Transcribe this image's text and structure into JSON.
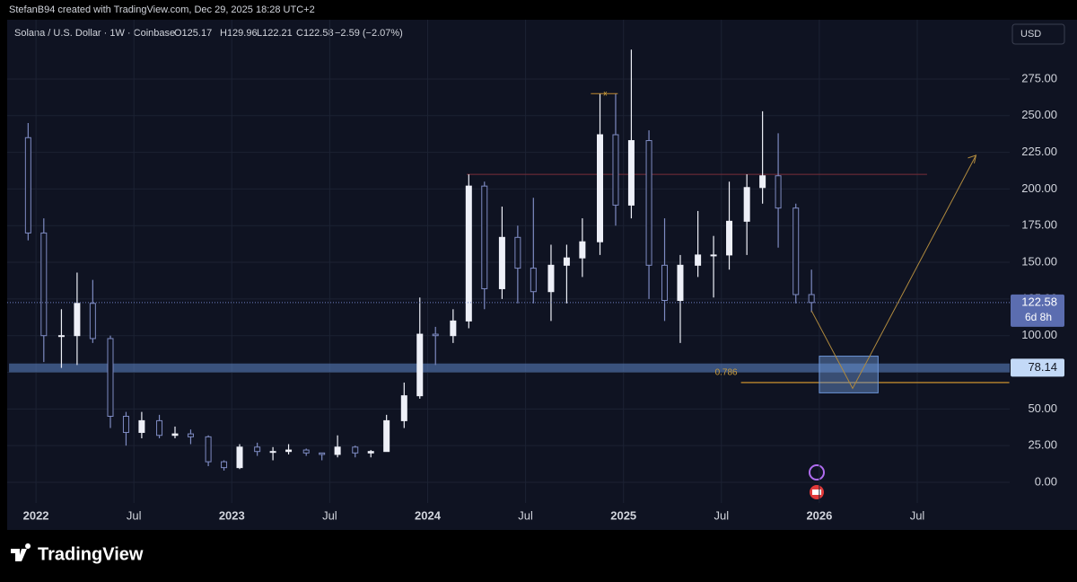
{
  "header": "StefanB94 created with TradingView.com, Dec 29, 2025 18:28 UTC+2",
  "chart_data": {
    "type": "candlestick",
    "legend": {
      "symbol": "Solana / U.S. Dollar · 1W · Coinbase",
      "open": "O125.17",
      "high": "H129.96",
      "low": "L122.21",
      "close": "C122.58",
      "change": "−2.59 (−2.07%)"
    },
    "currency": "USD",
    "up_color": "#eef0f8",
    "down_color": "#7e8bc2",
    "candles": {
      "x": [
        2021.96,
        2022.04,
        2022.13,
        2022.21,
        2022.29,
        2022.38,
        2022.46,
        2022.54,
        2022.63,
        2022.71,
        2022.79,
        2022.88,
        2022.96,
        2023.04,
        2023.13,
        2023.21,
        2023.29,
        2023.38,
        2023.46,
        2023.54,
        2023.63,
        2023.71,
        2023.79,
        2023.88,
        2023.96,
        2024.04,
        2024.13,
        2024.21,
        2024.29,
        2024.38,
        2024.46,
        2024.54,
        2024.63,
        2024.71,
        2024.79,
        2024.88,
        2024.96,
        2025.04,
        2025.13,
        2025.21,
        2025.29,
        2025.38,
        2025.46,
        2025.54,
        2025.63,
        2025.71,
        2025.79,
        2025.88,
        2025.96
      ],
      "open": [
        235,
        170,
        100,
        100,
        122,
        98,
        45,
        34,
        42,
        32,
        33,
        31,
        14,
        10,
        24,
        21,
        21,
        22,
        20,
        19,
        24,
        20,
        21,
        42,
        59,
        101,
        100,
        110,
        202,
        132,
        167,
        146,
        130,
        148,
        153,
        164,
        237,
        189,
        233,
        148,
        124,
        148,
        155,
        155,
        178,
        201,
        209,
        187,
        128
      ],
      "high": [
        245,
        180,
        118,
        143,
        138,
        100,
        48,
        48,
        46,
        38,
        36,
        32,
        15,
        26,
        27,
        24,
        26,
        23,
        20,
        32,
        25,
        22,
        46,
        68,
        126,
        106,
        118,
        210,
        205,
        188,
        175,
        194,
        162,
        162,
        180,
        265,
        265,
        295,
        240,
        180,
        155,
        185,
        168,
        205,
        210,
        253,
        238,
        190,
        145
      ],
      "low": [
        165,
        82,
        78,
        80,
        95,
        37,
        25,
        30,
        30,
        30,
        26,
        11,
        8,
        9,
        18,
        15,
        19,
        18,
        15,
        17,
        17,
        17,
        21,
        37,
        57,
        80,
        95,
        105,
        118,
        125,
        122,
        122,
        110,
        122,
        140,
        155,
        175,
        180,
        125,
        110,
        95,
        140,
        126,
        145,
        155,
        190,
        160,
        122,
        116
      ],
      "close": [
        170,
        100,
        100,
        122,
        98,
        45,
        34,
        42,
        32,
        33,
        31,
        14,
        10,
        24,
        21,
        21,
        22,
        20,
        19,
        24,
        20,
        21,
        42,
        59,
        101,
        100,
        110,
        202,
        132,
        167,
        146,
        130,
        148,
        153,
        164,
        237,
        189,
        233,
        148,
        124,
        148,
        155,
        155,
        178,
        201,
        209,
        187,
        128,
        122.58
      ]
    },
    "xlim": [
      2021.853,
      2026.972
    ],
    "ylim": [
      -14.1,
      315.4
    ],
    "xticks": [
      2022,
      {
        "value": 2022.5,
        "label": "Jul"
      },
      2023,
      {
        "value": 2023.5,
        "label": "Jul"
      },
      2024,
      {
        "value": 2024.5,
        "label": "Jul"
      },
      2025,
      {
        "value": 2025.5,
        "label": "Jul"
      },
      2026,
      {
        "value": 2026.5,
        "label": "Jul"
      }
    ],
    "yticks": [
      {
        "value": 0,
        "label": "0.00"
      },
      {
        "value": 25,
        "label": "25.00"
      },
      {
        "value": 50,
        "label": "50.00"
      },
      {
        "value": 75,
        "label": "75.00"
      },
      {
        "value": 100,
        "label": "100.00"
      },
      {
        "value": 125,
        "label": "125.00"
      },
      {
        "value": 150,
        "label": "150.00"
      },
      {
        "value": 175,
        "label": "175.00"
      },
      {
        "value": 200,
        "label": "200.00"
      },
      {
        "value": 225,
        "label": "225.00"
      },
      {
        "value": 250,
        "label": "250.00"
      },
      {
        "value": 275,
        "label": "275.00"
      }
    ],
    "grid": true,
    "last_price": 122.58,
    "countdown": "6d 8h",
    "support_zone": {
      "ylim": [
        75,
        81
      ],
      "value": 78.14
    },
    "fib_level": {
      "ratio": 0.786,
      "price": 68,
      "x": [
        2025.6,
        2026.97
      ]
    },
    "resistance": {
      "value": 210,
      "x": [
        2024.2,
        2026.55
      ]
    },
    "projection": {
      "x": [
        2025.96,
        2026.17,
        2026.8
      ],
      "y": [
        117,
        64,
        223
      ]
    },
    "projection_box": {
      "xlim": [
        2026.0,
        2026.3
      ],
      "ylim": [
        61,
        86
      ]
    },
    "marker": {
      "label": "x",
      "x": 2024.87,
      "y": 265
    }
  },
  "footer": "TradingView"
}
